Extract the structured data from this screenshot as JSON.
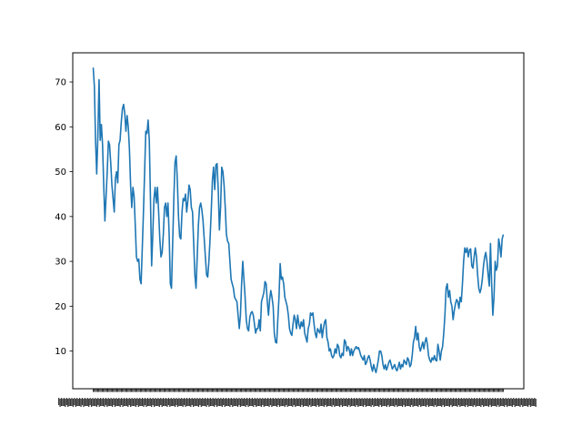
{
  "chart_data": {
    "type": "line",
    "title": "",
    "xlabel": "",
    "ylabel": "",
    "x_tick_labels_note": "x tick labels are illegible (overlapping)",
    "ylim": [
      1.6,
      76.5
    ],
    "yticks": [
      10,
      20,
      30,
      40,
      50,
      60,
      70
    ],
    "ytick_labels": [
      "10",
      "20",
      "30",
      "40",
      "50",
      "60",
      "70"
    ],
    "grid": false,
    "legend": "none",
    "series_color": "#1f77b4",
    "n_points": 366,
    "series": [
      {
        "values": [
          73.2,
          69.0,
          57.0,
          49.5,
          58.0,
          70.5,
          57.0,
          60.5,
          56.0,
          47.0,
          39.0,
          44.5,
          50.0,
          56.8,
          56.0,
          52.0,
          47.0,
          44.0,
          41.0,
          48.5,
          50.0,
          47.5,
          56.0,
          57.0,
          61.0,
          64.0,
          65.0,
          63.0,
          59.0,
          62.5,
          60.0,
          55.0,
          47.0,
          42.0,
          46.5,
          44.5,
          38.0,
          31.0,
          30.0,
          30.5,
          26.0,
          25.0,
          33.0,
          41.0,
          50.0,
          59.0,
          58.5,
          61.5,
          57.0,
          44.0,
          29.0,
          36.0,
          44.0,
          46.5,
          43.0,
          46.5,
          41.0,
          35.0,
          31.0,
          32.0,
          36.0,
          42.0,
          43.0,
          40.0,
          43.0,
          36.0,
          25.0,
          24.0,
          34.0,
          44.0,
          52.0,
          53.5,
          48.0,
          40.0,
          35.5,
          35.0,
          41.0,
          44.0,
          43.5,
          45.0,
          41.0,
          43.5,
          47.0,
          46.0,
          42.0,
          41.0,
          34.0,
          27.0,
          24.0,
          31.0,
          38.0,
          42.0,
          43.0,
          41.5,
          39.0,
          35.0,
          31.0,
          27.0,
          26.5,
          30.0,
          35.0,
          41.0,
          48.0,
          51.0,
          46.0,
          51.5,
          51.8,
          46.0,
          37.0,
          42.0,
          51.0,
          50.0,
          47.0,
          42.0,
          36.0,
          34.5,
          34.0,
          30.0,
          26.0,
          25.0,
          24.0,
          22.0,
          21.5,
          21.0,
          18.0,
          15.0,
          18.0,
          25.0,
          30.0,
          26.0,
          22.0,
          17.0,
          15.0,
          14.5,
          17.5,
          18.5,
          18.8,
          18.0,
          16.0,
          14.0,
          15.0,
          15.0,
          17.0,
          14.5,
          21.0,
          22.0,
          23.0,
          25.5,
          25.0,
          21.0,
          18.0,
          21.5,
          23.5,
          22.0,
          20.0,
          14.0,
          12.0,
          11.8,
          17.0,
          22.0,
          29.5,
          26.0,
          26.5,
          25.0,
          22.0,
          21.0,
          20.0,
          18.0,
          15.0,
          14.0,
          13.5,
          16.0,
          18.0,
          17.0,
          15.0,
          18.0,
          16.0,
          15.0,
          16.5,
          15.5,
          17.0,
          14.0,
          13.0,
          12.0,
          15.0,
          16.0,
          18.5,
          18.0,
          18.5,
          16.0,
          14.0,
          13.0,
          15.0,
          14.5,
          14.0,
          16.0,
          13.0,
          15.0,
          16.5,
          17.0,
          13.0,
          12.0,
          10.0,
          10.5,
          9.0,
          8.5,
          9.0,
          10.5,
          9.5,
          11.5,
          11.0,
          9.0,
          8.5,
          9.5,
          9.0,
          12.5,
          12.0,
          10.0,
          11.0,
          10.5,
          9.0,
          10.5,
          9.0,
          10.0,
          10.5,
          11.0,
          10.5,
          10.8,
          10.0,
          9.0,
          8.5,
          8.0,
          9.0,
          7.0,
          7.5,
          8.5,
          9.0,
          8.0,
          6.5,
          5.5,
          7.0,
          6.0,
          5.2,
          6.5,
          8.0,
          10.0,
          10.0,
          9.0,
          7.0,
          6.0,
          7.0,
          5.8,
          6.5,
          7.5,
          8.0,
          7.0,
          6.0,
          6.5,
          7.0,
          6.0,
          5.6,
          6.5,
          7.5,
          6.0,
          7.0,
          6.5,
          8.0,
          7.5,
          7.0,
          8.5,
          8.0,
          6.5,
          7.0,
          9.0,
          12.0,
          13.0,
          15.5,
          12.5,
          14.0,
          11.0,
          10.0,
          11.0,
          12.0,
          10.5,
          12.0,
          13.0,
          11.5,
          9.0,
          8.0,
          7.5,
          8.5,
          8.0,
          9.0,
          8.0,
          7.8,
          11.5,
          10.0,
          8.0,
          10.0,
          11.0,
          14.0,
          18.0,
          24.0,
          25.0,
          22.0,
          23.5,
          21.0,
          20.0,
          17.0,
          19.0,
          20.5,
          21.5,
          21.0,
          19.5,
          22.0,
          21.0,
          25.0,
          30.0,
          33.0,
          32.0,
          33.0,
          31.0,
          32.5,
          32.8,
          29.0,
          28.5,
          31.0,
          33.0,
          31.0,
          27.0,
          24.0,
          23.0,
          24.0,
          26.0,
          29.0,
          31.0,
          32.0,
          30.0,
          27.0,
          24.5,
          34.0,
          25.0,
          18.0,
          22.0,
          30.0,
          28.0,
          29.0,
          35.0,
          33.5,
          31.0,
          35.0,
          36.0
        ]
      }
    ]
  }
}
